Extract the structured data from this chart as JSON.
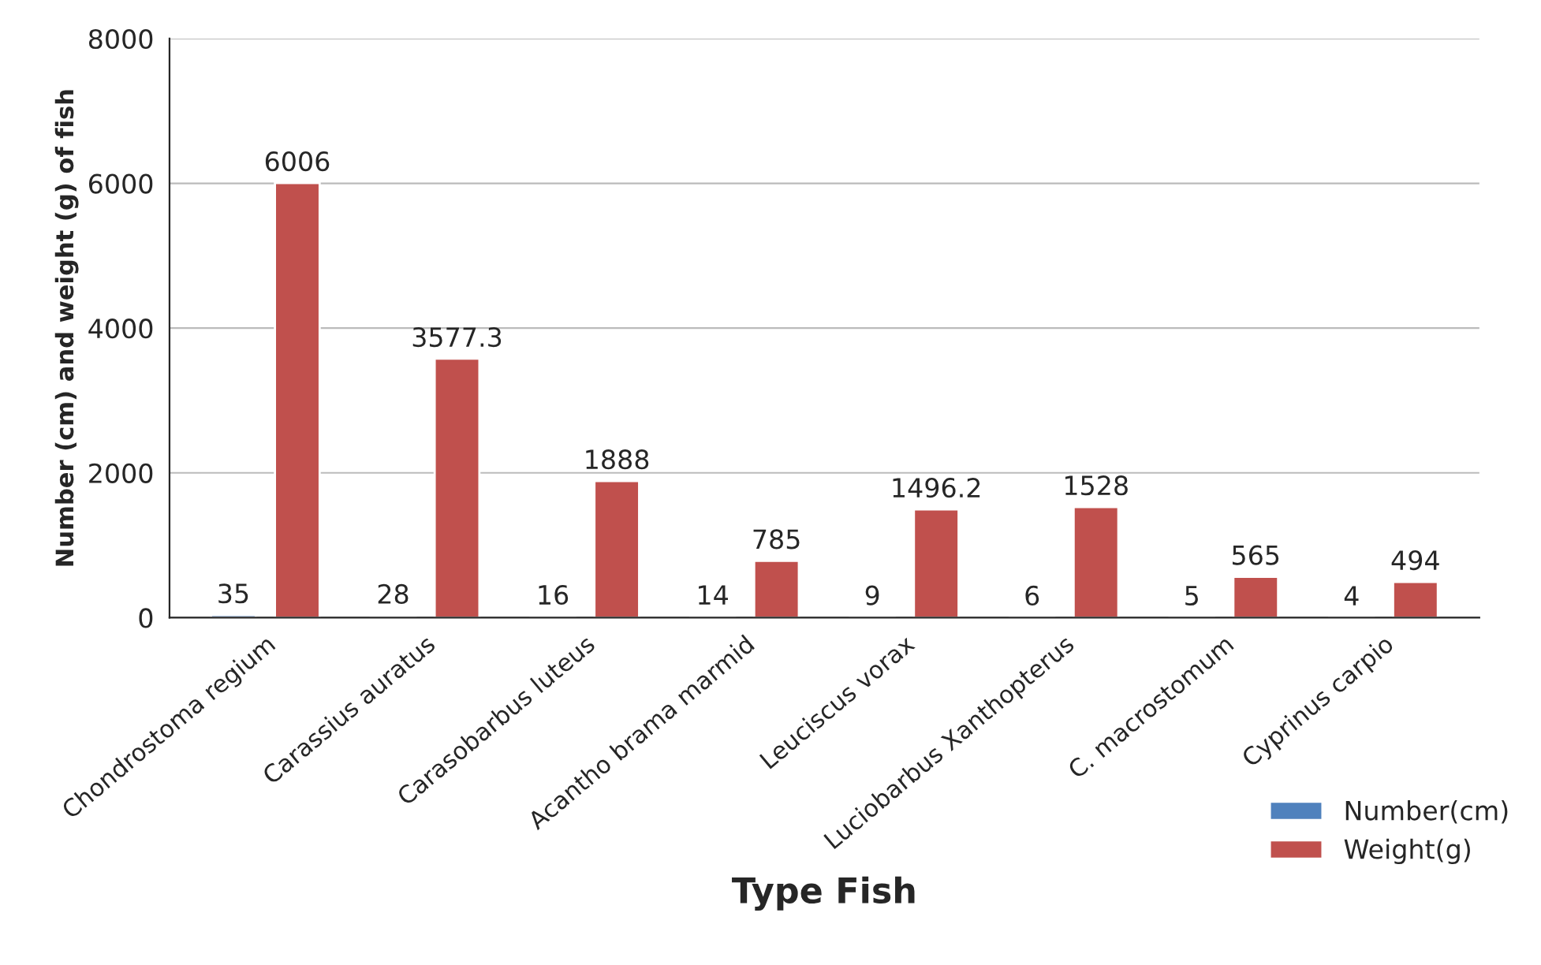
{
  "chart_data": {
    "type": "bar",
    "categories": [
      "Chondrostoma regium",
      "Carassius auratus",
      "Carasobarbus luteus",
      "Acantho brama marmid",
      "Leuciscus vorax",
      "Luciobarbus Xanthopterus",
      "C. macrostomum",
      "Cyprinus carpio"
    ],
    "series": [
      {
        "name": "Number(cm)",
        "color": "#4f81bd",
        "values": [
          35,
          28,
          16,
          14,
          9,
          6,
          5,
          4
        ]
      },
      {
        "name": "Weight(g)",
        "color": "#c0504d",
        "values": [
          6006,
          3577.3,
          1888,
          785,
          1496.2,
          1528,
          565,
          494
        ]
      }
    ],
    "xlabel": "Type Fish",
    "ylabel": "Number (cm) and weight (g) of fish",
    "ylim": [
      0,
      8000
    ],
    "yticks": [
      0,
      2000,
      4000,
      6000,
      8000
    ],
    "grid": "y",
    "legend": "bottom right",
    "data_labels": true
  }
}
